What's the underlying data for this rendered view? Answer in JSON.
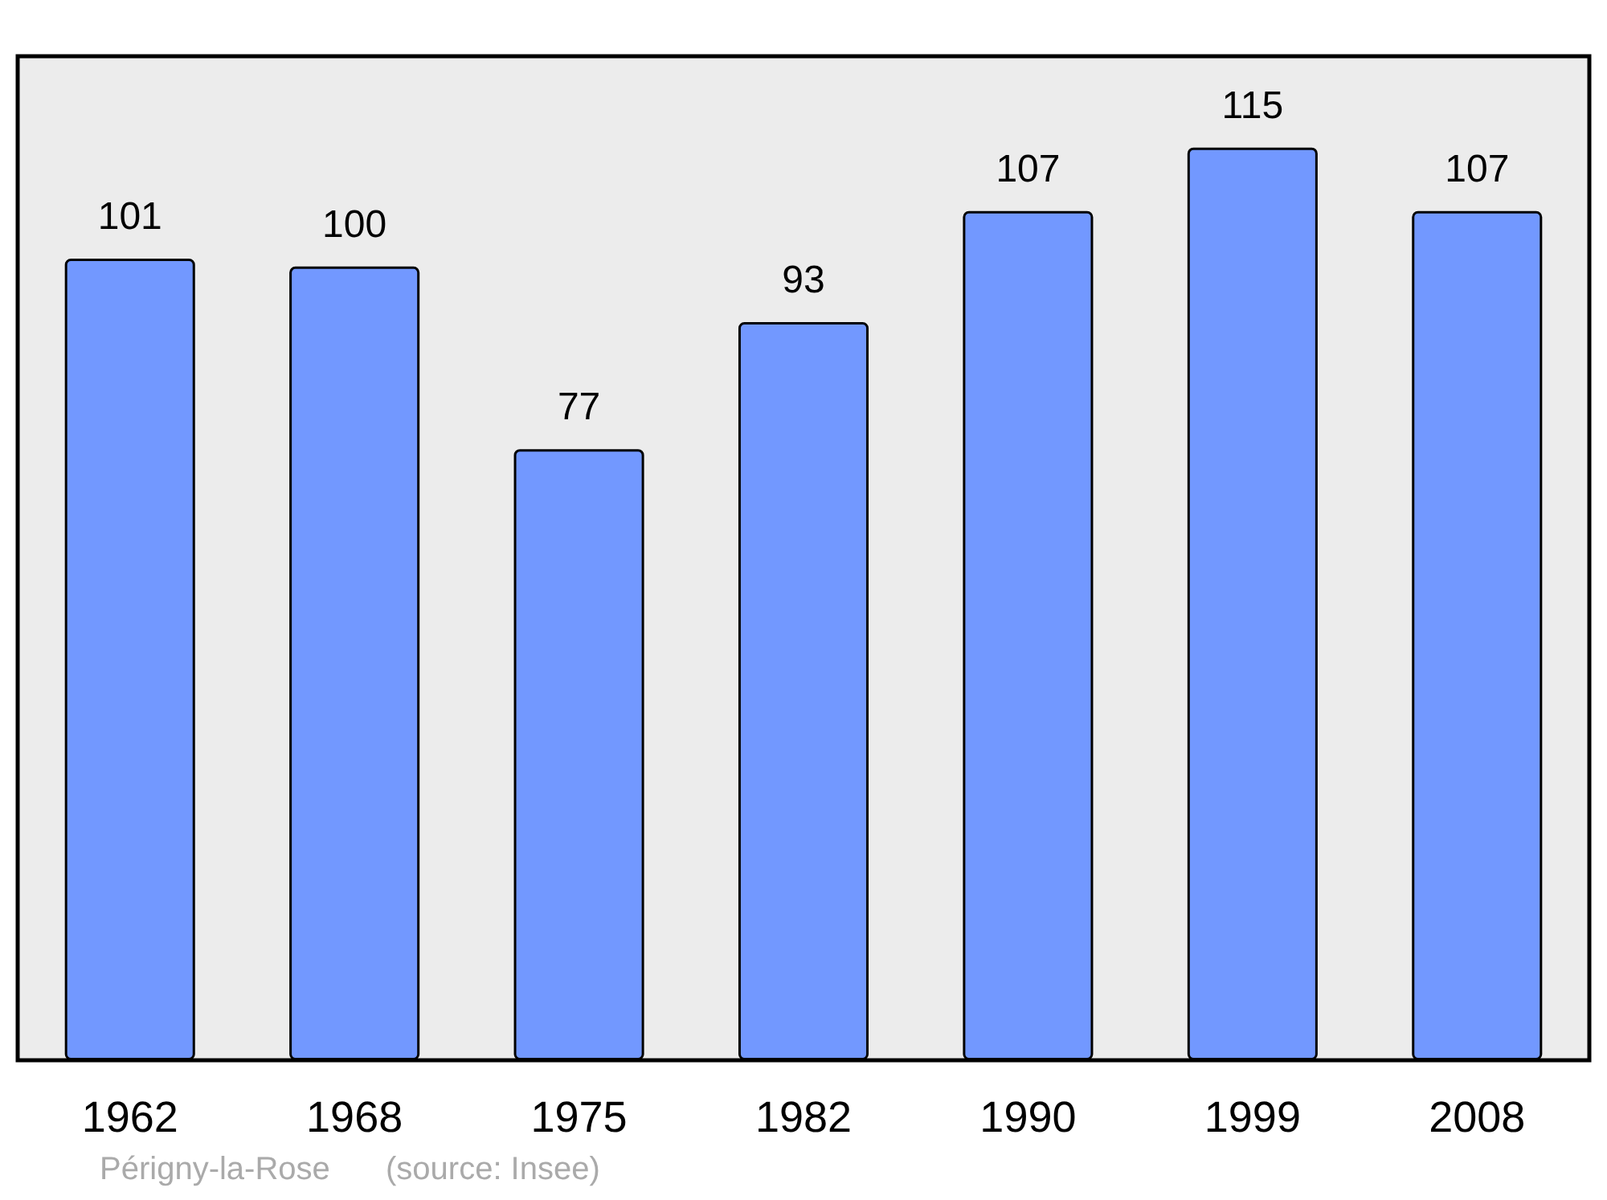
{
  "chart_data": {
    "type": "bar",
    "categories": [
      "1962",
      "1968",
      "1975",
      "1982",
      "1990",
      "1999",
      "2008"
    ],
    "values": [
      101,
      100,
      77,
      93,
      107,
      115,
      107
    ],
    "color": "#7298ff",
    "data_labels": true,
    "annotations": [
      "Périgny-la-Rose",
      "(source: Insee)"
    ]
  }
}
